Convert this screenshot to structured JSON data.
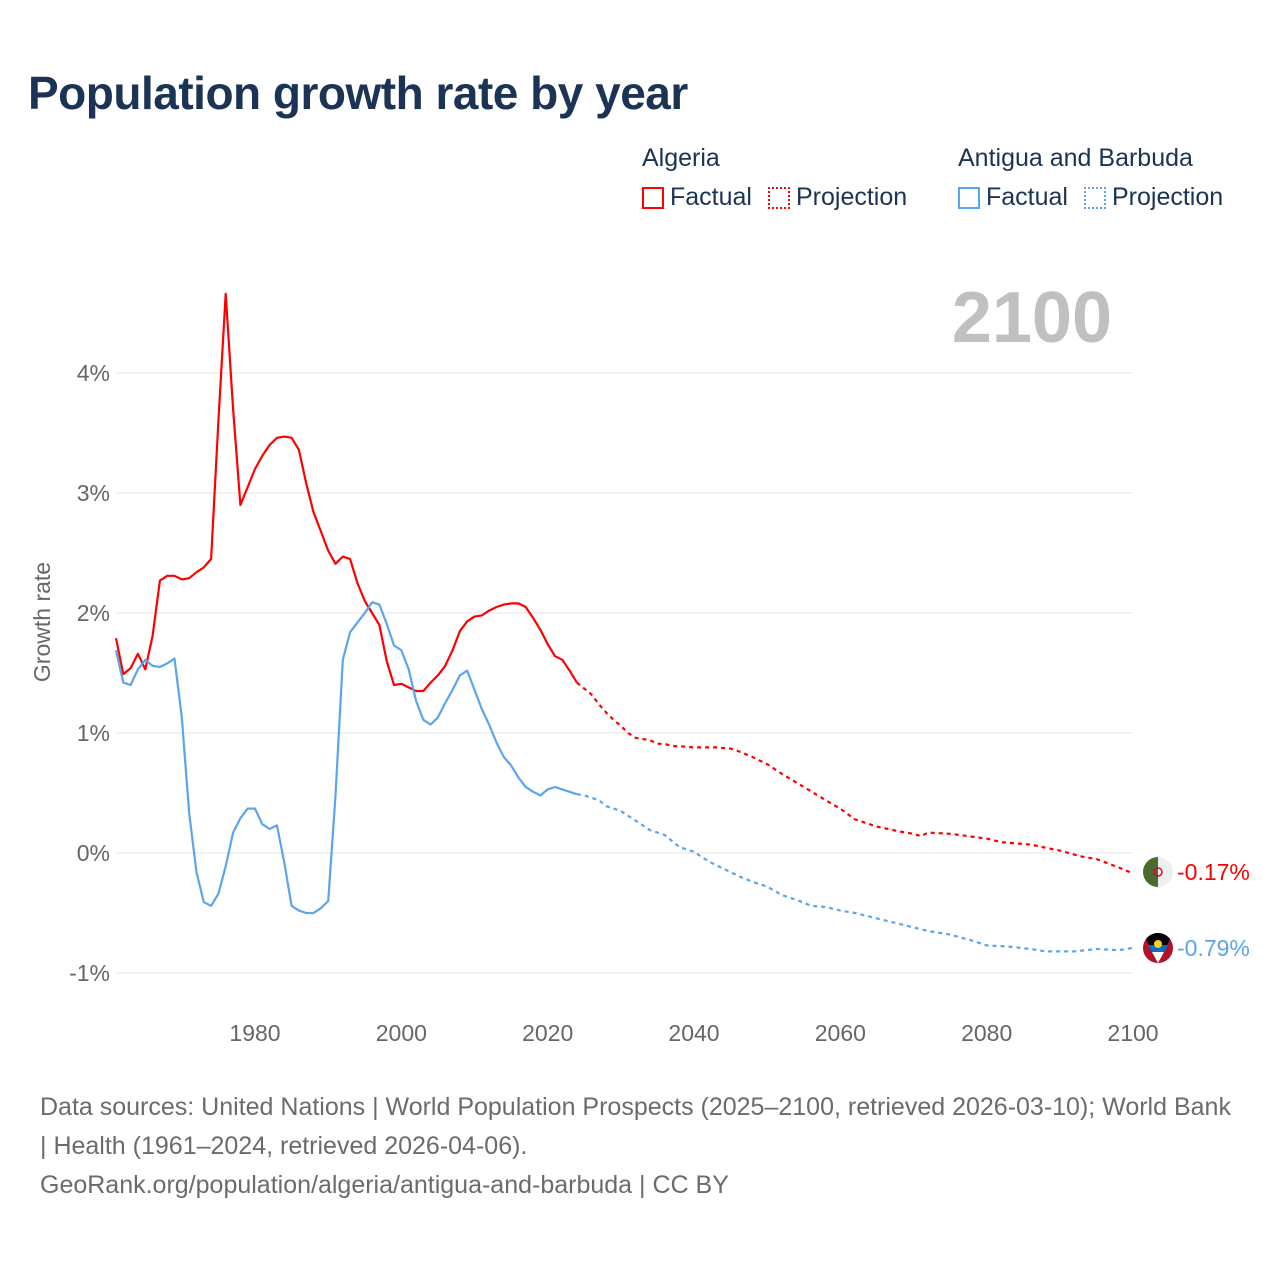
{
  "chart_data": {
    "type": "line",
    "title": "Population growth rate by year",
    "ylabel": "Growth rate",
    "xlabel": "",
    "xlim": [
      1961,
      2100
    ],
    "ylim": [
      -1.1,
      4.9
    ],
    "x_ticks": [
      1980,
      2000,
      2020,
      2040,
      2060,
      2080,
      2100
    ],
    "x_tick_labels": [
      "1980",
      "2000",
      "2020",
      "2040",
      "2060",
      "2080",
      "2100"
    ],
    "y_ticks": [
      -1,
      0,
      1,
      2,
      3,
      4
    ],
    "y_tick_labels": [
      "-1%",
      "0%",
      "1%",
      "2%",
      "3%",
      "4%"
    ],
    "grid": true,
    "legend_placement": "top-right",
    "year_label": "2100",
    "series": [
      {
        "name": "Algeria",
        "color": "#ff0000",
        "end_label": "-0.17%",
        "legend": {
          "group": "Algeria",
          "factual": "Factual",
          "projection": "Projection"
        },
        "factual": {
          "x": [
            1961,
            1962,
            1963,
            1964,
            1965,
            1966,
            1967,
            1968,
            1969,
            1970,
            1971,
            1972,
            1973,
            1974,
            1975,
            1976,
            1977,
            1978,
            1979,
            1980,
            1981,
            1982,
            1983,
            1984,
            1985,
            1986,
            1987,
            1988,
            1989,
            1990,
            1991,
            1992,
            1993,
            1994,
            1995,
            1996,
            1997,
            1998,
            1999,
            2000,
            2001,
            2002,
            2003,
            2004,
            2005,
            2006,
            2007,
            2008,
            2009,
            2010,
            2011,
            2012,
            2013,
            2014,
            2015,
            2016,
            2017,
            2018,
            2019,
            2020,
            2021,
            2022,
            2023,
            2024
          ],
          "y": [
            1.79,
            1.49,
            1.54,
            1.66,
            1.53,
            1.81,
            2.27,
            2.31,
            2.31,
            2.28,
            2.29,
            2.34,
            2.38,
            2.45,
            3.6,
            4.66,
            3.7,
            2.9,
            3.05,
            3.2,
            3.31,
            3.4,
            3.46,
            3.47,
            3.46,
            3.36,
            3.08,
            2.84,
            2.68,
            2.52,
            2.41,
            2.47,
            2.45,
            2.25,
            2.1,
            2.0,
            1.9,
            1.6,
            1.4,
            1.41,
            1.38,
            1.35,
            1.35,
            1.42,
            1.48,
            1.56,
            1.69,
            1.85,
            1.93,
            1.97,
            1.98,
            2.02,
            2.05,
            2.07,
            2.08,
            2.08,
            2.05,
            1.96,
            1.86,
            1.74,
            1.64,
            1.61,
            1.52,
            1.42
          ]
        },
        "projection": {
          "x": [
            2024,
            2025,
            2026,
            2027,
            2028,
            2029,
            2030,
            2031,
            2032,
            2033,
            2034,
            2035,
            2036,
            2037,
            2038,
            2040,
            2043,
            2045,
            2046,
            2048,
            2050,
            2052,
            2055,
            2058,
            2060,
            2062,
            2065,
            2068,
            2070,
            2071,
            2072,
            2075,
            2080,
            2082,
            2086,
            2090,
            2093,
            2095,
            2098,
            2100
          ],
          "y": [
            1.42,
            1.37,
            1.32,
            1.24,
            1.17,
            1.11,
            1.06,
            1.0,
            0.96,
            0.95,
            0.94,
            0.91,
            0.91,
            0.89,
            0.89,
            0.88,
            0.88,
            0.87,
            0.85,
            0.8,
            0.74,
            0.66,
            0.55,
            0.44,
            0.37,
            0.28,
            0.22,
            0.18,
            0.16,
            0.14,
            0.17,
            0.16,
            0.12,
            0.09,
            0.07,
            0.02,
            -0.03,
            -0.05,
            -0.12,
            -0.17
          ]
        }
      },
      {
        "name": "Antigua and Barbuda",
        "color": "#5aa5ec",
        "end_label": "-0.79%",
        "legend": {
          "group": "Antigua and Barbuda",
          "factual": "Factual",
          "projection": "Projection"
        },
        "factual": {
          "x": [
            1961,
            1962,
            1963,
            1964,
            1965,
            1966,
            1967,
            1968,
            1969,
            1970,
            1971,
            1972,
            1973,
            1974,
            1975,
            1976,
            1977,
            1978,
            1979,
            1980,
            1981,
            1982,
            1983,
            1984,
            1985,
            1986,
            1987,
            1988,
            1989,
            1990,
            1991,
            1992,
            1993,
            1994,
            1995,
            1996,
            1997,
            1998,
            1999,
            2000,
            2001,
            2002,
            2003,
            2004,
            2005,
            2006,
            2007,
            2008,
            2009,
            2010,
            2011,
            2012,
            2013,
            2014,
            2015,
            2016,
            2017,
            2018,
            2019,
            2020,
            2021,
            2022,
            2023,
            2024
          ],
          "y": [
            1.69,
            1.42,
            1.4,
            1.53,
            1.61,
            1.56,
            1.55,
            1.58,
            1.62,
            1.13,
            0.33,
            -0.16,
            -0.41,
            -0.44,
            -0.34,
            -0.11,
            0.17,
            0.29,
            0.37,
            0.37,
            0.24,
            0.2,
            0.23,
            -0.08,
            -0.44,
            -0.48,
            -0.5,
            -0.5,
            -0.46,
            -0.4,
            0.48,
            1.61,
            1.84,
            1.92,
            2.0,
            2.09,
            2.07,
            1.91,
            1.73,
            1.69,
            1.53,
            1.27,
            1.11,
            1.07,
            1.13,
            1.25,
            1.36,
            1.48,
            1.52,
            1.36,
            1.2,
            1.07,
            0.92,
            0.8,
            0.73,
            0.63,
            0.55,
            0.51,
            0.48,
            0.53,
            0.55,
            0.53,
            0.51,
            0.49
          ]
        },
        "projection": {
          "x": [
            2024,
            2025,
            2027,
            2028,
            2030,
            2032,
            2034,
            2036,
            2038,
            2040,
            2042,
            2044,
            2046,
            2048,
            2050,
            2052,
            2054,
            2056,
            2058,
            2060,
            2062,
            2064,
            2066,
            2068,
            2070,
            2072,
            2075,
            2078,
            2080,
            2083,
            2086,
            2088,
            2092,
            2095,
            2098,
            2100
          ],
          "y": [
            0.49,
            0.48,
            0.44,
            0.39,
            0.35,
            0.27,
            0.19,
            0.15,
            0.05,
            0.01,
            -0.07,
            -0.13,
            -0.19,
            -0.24,
            -0.28,
            -0.35,
            -0.39,
            -0.44,
            -0.45,
            -0.48,
            -0.5,
            -0.53,
            -0.56,
            -0.59,
            -0.62,
            -0.65,
            -0.68,
            -0.73,
            -0.77,
            -0.78,
            -0.8,
            -0.82,
            -0.82,
            -0.8,
            -0.81,
            -0.79
          ]
        }
      }
    ]
  },
  "footer": {
    "line1": "Data sources: United Nations | World Population Prospects (2025–2100, retrieved 2026-03-10); World Bank | Health (1961–2024, retrieved 2026-04-06).",
    "line2": "GeoRank.org/population/algeria/antigua-and-barbuda | CC BY"
  }
}
